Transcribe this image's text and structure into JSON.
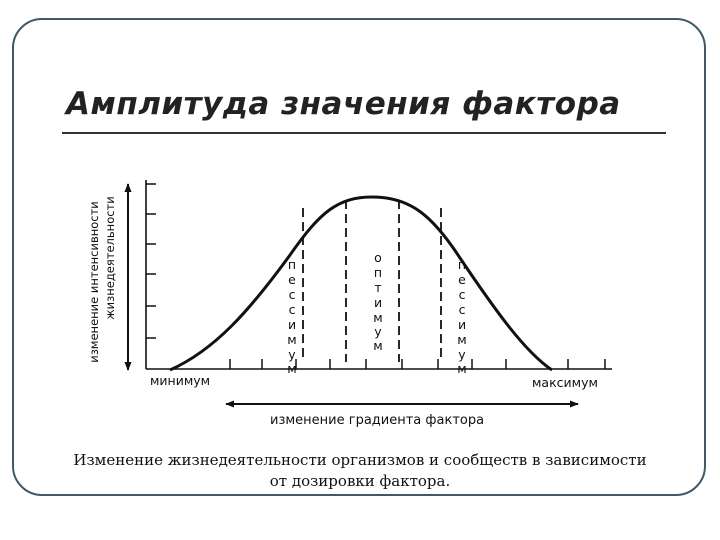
{
  "title": "Амплитуда значения фактора",
  "caption": "Изменение жизнедеятельности организмов и сообществ в зависимости от дозировки фактора.",
  "diagram": {
    "y_axis_label_line1": "изменение интенсивности",
    "y_axis_label_line2": "жизнедеятельности",
    "x_axis_label": "изменение градиента фактора",
    "minimum_label": "минимум",
    "maximum_label": "максимум",
    "zones": [
      {
        "letters": [
          "п",
          "е",
          "с",
          "с",
          "и",
          "м",
          "у",
          "м"
        ]
      },
      {
        "letters": [
          "о",
          "п",
          "т",
          "и",
          "м",
          "у",
          "м"
        ]
      },
      {
        "letters": [
          "п",
          "е",
          "с",
          "с",
          "и",
          "м",
          "у",
          "м"
        ]
      }
    ]
  }
}
